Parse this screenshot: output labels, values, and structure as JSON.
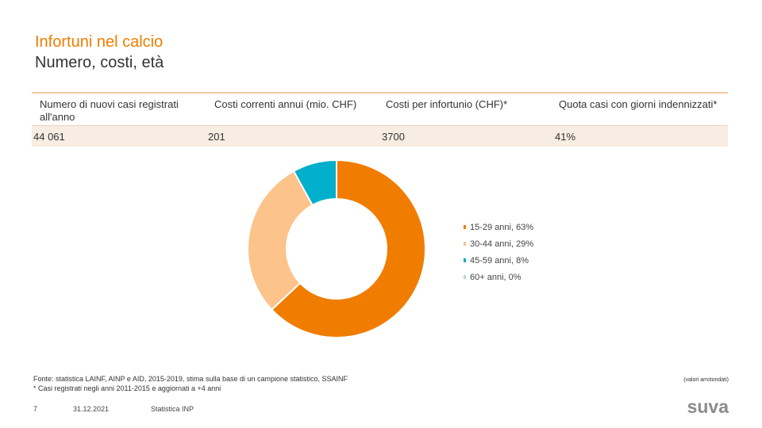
{
  "title": {
    "line1": "Infortuni nel calcio",
    "line2": "Numero, costi, età"
  },
  "kpis": [
    {
      "label": "Numero di nuovi casi registrati all'anno",
      "value": "44 061"
    },
    {
      "label": "Costi correnti annui (mio. CHF)",
      "value": "201"
    },
    {
      "label": "Costi per infortunio (CHF)*",
      "value": "3700"
    },
    {
      "label": "Quota casi con giorni indennizzati*",
      "value": "41%"
    }
  ],
  "chart_data": {
    "type": "pie",
    "donut": true,
    "categories": [
      "15-29 anni",
      "30-44 anni",
      "45-59 anni",
      "60+ anni"
    ],
    "values": [
      63,
      29,
      8,
      0
    ],
    "unit": "%",
    "colors": [
      "#f07d00",
      "#fcc38a",
      "#00afcb",
      "#b5d8e0"
    ],
    "legend": [
      "15-29 anni, 63%",
      "30-44 anni, 29%",
      "45-59 anni, 8%",
      "60+ anni, 0%"
    ],
    "legend_position": "right"
  },
  "footer": {
    "source": "Fonte: statistica LAINF, AINP e AID, 2015-2019, stima sulla base di un campione statistico, SSAINF",
    "footnote": "* Casi registrati negli anni 2011-2015 e aggiornati a +4 anni",
    "rounding_note": "(valori arrotondati)",
    "page": "7",
    "date": "31.12.2021",
    "label": "Statistica INP",
    "logo": "suva"
  }
}
